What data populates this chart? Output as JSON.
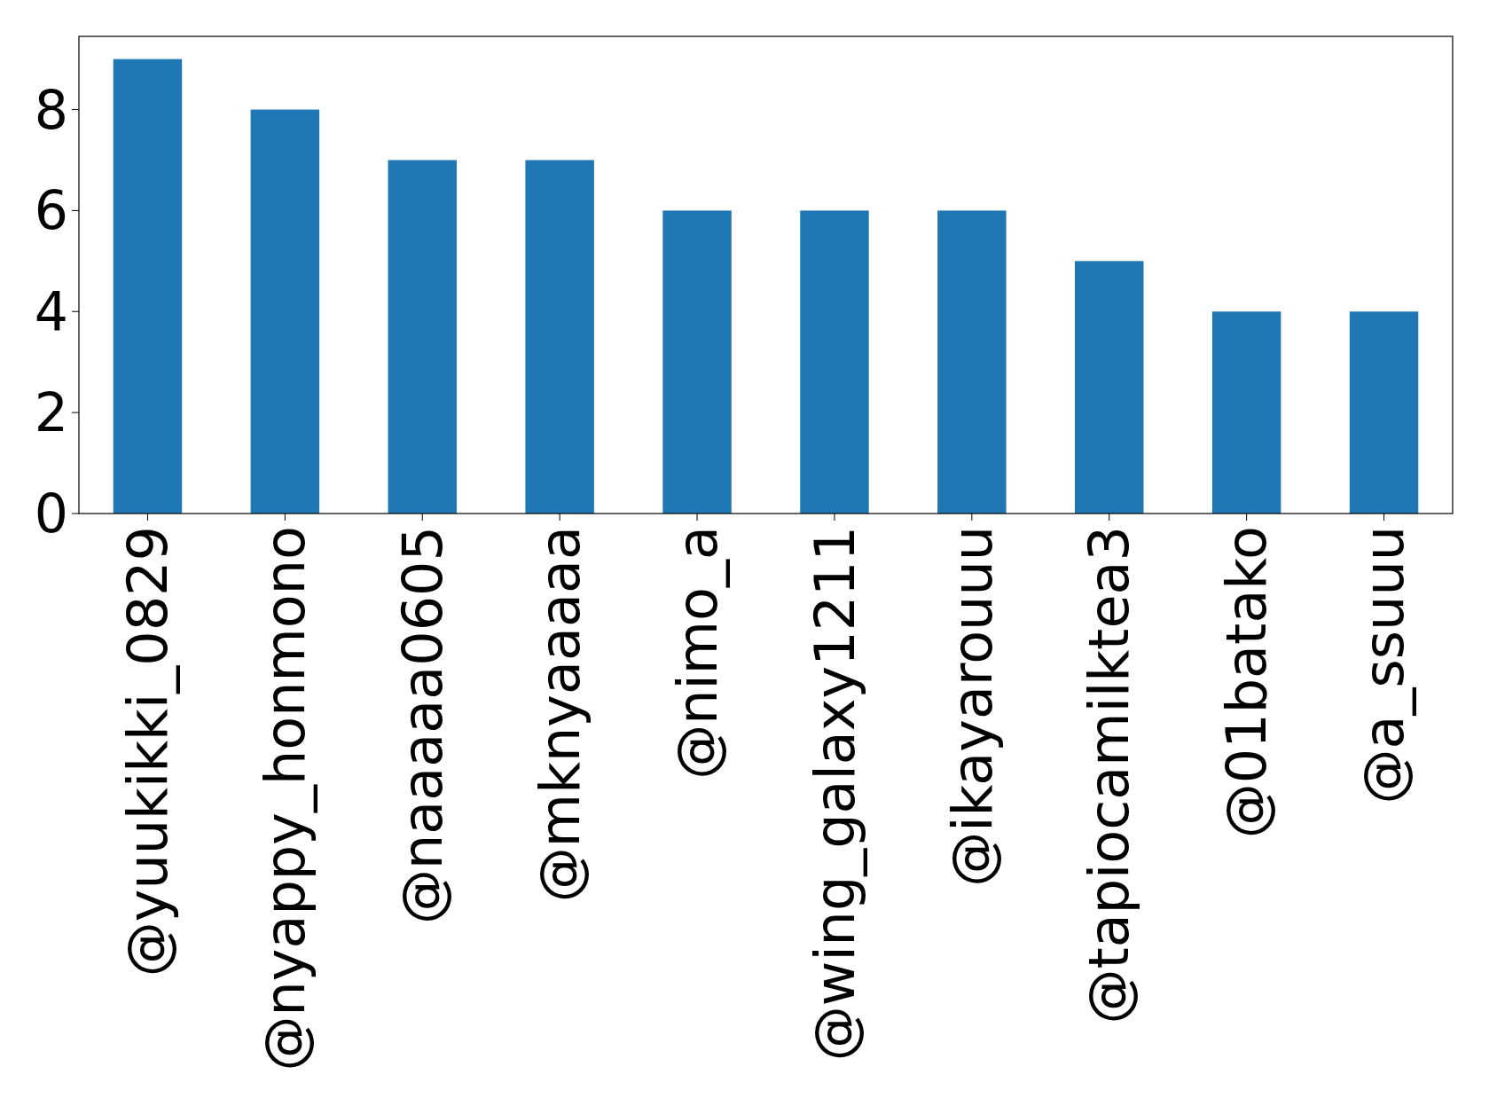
{
  "chart_data": {
    "type": "bar",
    "categories": [
      "@yuukikki_0829",
      "@nyappy_honmono",
      "@naaaaa0605",
      "@mknyaaaaa",
      "@nimo_a",
      "@wing_galaxy1211",
      "@ikayarouuu",
      "@tapiocamilktea3",
      "@01batako",
      "@a_ssuuu"
    ],
    "values": [
      9,
      8,
      7,
      7,
      6,
      6,
      6,
      5,
      4,
      4
    ],
    "color": "#1f77b4",
    "ylim": [
      0,
      9.45
    ],
    "yticks": [
      0,
      2,
      4,
      6,
      8
    ],
    "grid": false
  }
}
